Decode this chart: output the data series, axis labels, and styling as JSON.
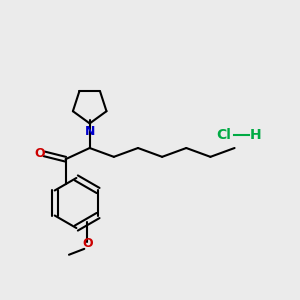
{
  "background_color": "#ebebeb",
  "bond_color": "#000000",
  "N_color": "#0000cc",
  "O_color": "#cc0000",
  "Cl_H_color": "#00aa44",
  "line_width": 1.5,
  "figsize": [
    3.0,
    3.0
  ],
  "dpi": 100,
  "xlim": [
    0,
    10
  ],
  "ylim": [
    0,
    10
  ]
}
